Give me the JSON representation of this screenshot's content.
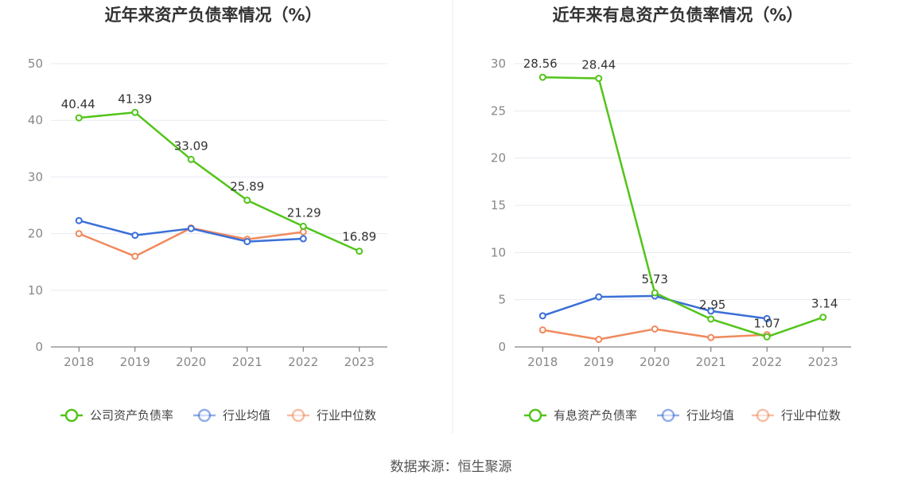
{
  "source_text": "数据来源：恒生聚源",
  "colors": {
    "primary": "#52c41a",
    "avg": "#3a6fd8",
    "median": "#f08a5d"
  },
  "chart_data": [
    {
      "type": "line",
      "title": "近年来资产负债率情况（%）",
      "categories": [
        "2018",
        "2019",
        "2020",
        "2021",
        "2022",
        "2023"
      ],
      "ylim": [
        0,
        50
      ],
      "yticks": [
        "0",
        "10",
        "20",
        "30",
        "40",
        "50"
      ],
      "grid": true,
      "legend": "bottom",
      "series": [
        {
          "name": "公司资产负债率",
          "color": "#52c41a",
          "values": [
            40.44,
            41.39,
            33.09,
            25.89,
            21.29,
            16.89
          ],
          "labels": [
            "40.44",
            "41.39",
            "33.09",
            "25.89",
            "21.29",
            "16.89"
          ]
        },
        {
          "name": "行业均值",
          "color": "#3a6fd8",
          "values": [
            22.3,
            19.7,
            20.9,
            18.6,
            19.1,
            null
          ]
        },
        {
          "name": "行业中位数",
          "color": "#f08a5d",
          "values": [
            20.0,
            16.0,
            21.0,
            19.0,
            20.3,
            null
          ]
        }
      ]
    },
    {
      "type": "line",
      "title": "近年来有息资产负债率情况（%）",
      "categories": [
        "2018",
        "2019",
        "2020",
        "2021",
        "2022",
        "2023"
      ],
      "ylim": [
        0,
        30
      ],
      "yticks": [
        "0",
        "5",
        "10",
        "15",
        "20",
        "25",
        "30"
      ],
      "grid": true,
      "legend": "bottom",
      "series": [
        {
          "name": "有息资产负债率",
          "color": "#52c41a",
          "values": [
            28.56,
            28.44,
            5.73,
            2.95,
            1.07,
            3.14
          ],
          "labels": [
            "28.56",
            "28.44",
            "5.73",
            "2.95",
            "1.07",
            "3.14"
          ]
        },
        {
          "name": "行业均值",
          "color": "#3a6fd8",
          "values": [
            3.3,
            5.3,
            5.4,
            3.8,
            3.0,
            null
          ]
        },
        {
          "name": "行业中位数",
          "color": "#f08a5d",
          "values": [
            1.8,
            0.8,
            1.9,
            1.0,
            1.3,
            null
          ]
        }
      ]
    }
  ]
}
